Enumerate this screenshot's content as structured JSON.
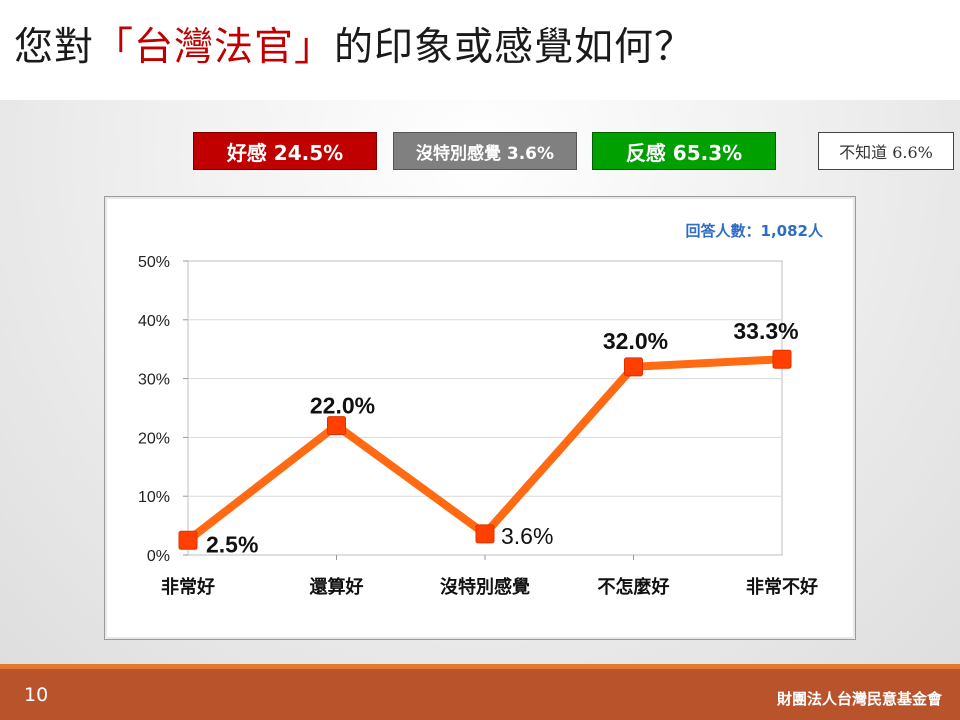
{
  "title": {
    "prefix": "您對",
    "highlight": "「台灣法官」",
    "suffix": "的印象或感覺如何？"
  },
  "summary": {
    "positive": "好感 24.5%",
    "neutral": "沒特別感覺 3.6%",
    "negative": "反感 65.3%",
    "unknown": "不知道 6.6%"
  },
  "respondents": "回答人數：1,082人",
  "footer": {
    "page": "10",
    "organization": "財團法人台灣民意基金會"
  },
  "colors": {
    "title_highlight": "#c00000",
    "positive": "#c00000",
    "neutral": "#808080",
    "negative": "#00a000",
    "line": "#ff6a13",
    "marker": "#ff4000",
    "respondents": "#2f6cc4",
    "footer": "#b9532b"
  },
  "chart_data": {
    "type": "line",
    "categories": [
      "非常好",
      "還算好",
      "沒特別感覺",
      "不怎麼好",
      "非常不好"
    ],
    "values": [
      2.5,
      22.0,
      3.6,
      32.0,
      33.3
    ],
    "value_labels": [
      "2.5%",
      "22.0%",
      "3.6%",
      "32.0%",
      "33.3%"
    ],
    "y_ticks": [
      "0%",
      "10%",
      "20%",
      "30%",
      "40%",
      "50%"
    ],
    "ylim": [
      0,
      50
    ],
    "grid": true,
    "legend": "none"
  }
}
